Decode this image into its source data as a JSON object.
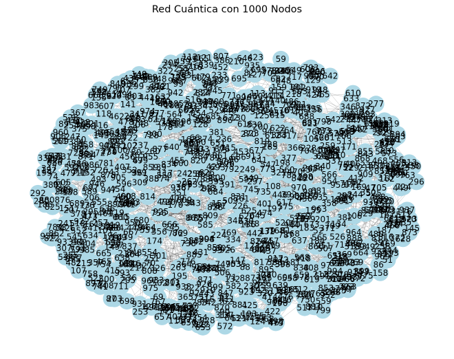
{
  "title": "Red Cuántica con 1000 Nodos",
  "graph": {
    "node_count": 1000,
    "node_color": "#add8e6",
    "edge_color": "#000000",
    "label_color": "#000000",
    "layout": "spring",
    "sample_labels": [
      "574",
      "749",
      "852",
      "883",
      "255",
      "566",
      "830",
      "765",
      "422",
      "633",
      "651",
      "1000",
      "871",
      "35",
      "109",
      "94",
      "181",
      "168",
      "909",
      "672",
      "93",
      "615",
      "686",
      "374",
      "834",
      "852",
      "150",
      "304",
      "534",
      "343",
      "926",
      "800",
      "488",
      "704",
      "415",
      "625",
      "118",
      "172",
      "161",
      "198",
      "280",
      "511",
      "547",
      "710",
      "787",
      "848"
    ]
  }
}
